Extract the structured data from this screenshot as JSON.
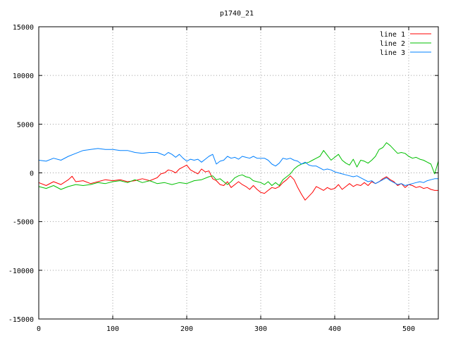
{
  "chart_data": {
    "type": "line",
    "title": "p1740_21",
    "xlabel": "",
    "ylabel": "",
    "xlim": [
      0,
      540
    ],
    "ylim": [
      -15000,
      15000
    ],
    "x_ticks": [
      0,
      100,
      200,
      300,
      400,
      500
    ],
    "y_ticks": [
      -15000,
      -10000,
      -5000,
      0,
      5000,
      10000,
      15000
    ],
    "grid": true,
    "legend_position": "top-right",
    "series": [
      {
        "name": "line 1",
        "color": "#ff0000",
        "points": [
          [
            0,
            -1000
          ],
          [
            10,
            -1300
          ],
          [
            20,
            -900
          ],
          [
            30,
            -1200
          ],
          [
            40,
            -700
          ],
          [
            45,
            -350
          ],
          [
            50,
            -900
          ],
          [
            60,
            -800
          ],
          [
            70,
            -1100
          ],
          [
            80,
            -900
          ],
          [
            90,
            -700
          ],
          [
            100,
            -800
          ],
          [
            110,
            -700
          ],
          [
            120,
            -900
          ],
          [
            130,
            -800
          ],
          [
            140,
            -600
          ],
          [
            150,
            -800
          ],
          [
            160,
            -500
          ],
          [
            165,
            -100
          ],
          [
            170,
            0
          ],
          [
            175,
            300
          ],
          [
            180,
            200
          ],
          [
            185,
            0
          ],
          [
            190,
            400
          ],
          [
            195,
            600
          ],
          [
            200,
            800
          ],
          [
            205,
            300
          ],
          [
            210,
            100
          ],
          [
            215,
            -100
          ],
          [
            220,
            400
          ],
          [
            225,
            100
          ],
          [
            230,
            200
          ],
          [
            235,
            -600
          ],
          [
            240,
            -800
          ],
          [
            245,
            -1200
          ],
          [
            250,
            -1300
          ],
          [
            255,
            -900
          ],
          [
            260,
            -1500
          ],
          [
            265,
            -1200
          ],
          [
            270,
            -900
          ],
          [
            275,
            -1200
          ],
          [
            280,
            -1400
          ],
          [
            285,
            -1700
          ],
          [
            290,
            -1300
          ],
          [
            295,
            -1700
          ],
          [
            300,
            -2000
          ],
          [
            305,
            -2100
          ],
          [
            310,
            -1800
          ],
          [
            315,
            -1500
          ],
          [
            320,
            -1600
          ],
          [
            325,
            -1400
          ],
          [
            330,
            -1000
          ],
          [
            335,
            -700
          ],
          [
            340,
            -300
          ],
          [
            345,
            -700
          ],
          [
            350,
            -1500
          ],
          [
            355,
            -2200
          ],
          [
            360,
            -2800
          ],
          [
            365,
            -2400
          ],
          [
            370,
            -2000
          ],
          [
            375,
            -1400
          ],
          [
            380,
            -1600
          ],
          [
            385,
            -1800
          ],
          [
            390,
            -1500
          ],
          [
            395,
            -1700
          ],
          [
            400,
            -1600
          ],
          [
            405,
            -1200
          ],
          [
            410,
            -1700
          ],
          [
            415,
            -1400
          ],
          [
            420,
            -1100
          ],
          [
            425,
            -1400
          ],
          [
            430,
            -1200
          ],
          [
            435,
            -1300
          ],
          [
            440,
            -1000
          ],
          [
            445,
            -1300
          ],
          [
            450,
            -900
          ],
          [
            455,
            -1100
          ],
          [
            460,
            -900
          ],
          [
            465,
            -600
          ],
          [
            470,
            -400
          ],
          [
            475,
            -700
          ],
          [
            480,
            -900
          ],
          [
            485,
            -1300
          ],
          [
            490,
            -1100
          ],
          [
            495,
            -1500
          ],
          [
            500,
            -1200
          ],
          [
            505,
            -1300
          ],
          [
            510,
            -1500
          ],
          [
            515,
            -1400
          ],
          [
            520,
            -1600
          ],
          [
            525,
            -1500
          ],
          [
            530,
            -1700
          ],
          [
            535,
            -1800
          ],
          [
            540,
            -1800
          ]
        ]
      },
      {
        "name": "line 2",
        "color": "#00c000",
        "points": [
          [
            0,
            -1400
          ],
          [
            10,
            -1600
          ],
          [
            20,
            -1300
          ],
          [
            30,
            -1700
          ],
          [
            40,
            -1400
          ],
          [
            50,
            -1200
          ],
          [
            60,
            -1300
          ],
          [
            70,
            -1200
          ],
          [
            80,
            -1000
          ],
          [
            90,
            -1100
          ],
          [
            100,
            -900
          ],
          [
            110,
            -800
          ],
          [
            120,
            -1000
          ],
          [
            130,
            -700
          ],
          [
            140,
            -1000
          ],
          [
            150,
            -800
          ],
          [
            160,
            -1100
          ],
          [
            170,
            -1000
          ],
          [
            180,
            -1200
          ],
          [
            190,
            -1000
          ],
          [
            200,
            -1100
          ],
          [
            210,
            -800
          ],
          [
            220,
            -700
          ],
          [
            230,
            -400
          ],
          [
            235,
            -300
          ],
          [
            240,
            -700
          ],
          [
            245,
            -600
          ],
          [
            250,
            -900
          ],
          [
            255,
            -1200
          ],
          [
            260,
            -900
          ],
          [
            265,
            -500
          ],
          [
            270,
            -300
          ],
          [
            275,
            -200
          ],
          [
            280,
            -400
          ],
          [
            285,
            -500
          ],
          [
            290,
            -800
          ],
          [
            300,
            -1000
          ],
          [
            305,
            -1200
          ],
          [
            310,
            -900
          ],
          [
            315,
            -1300
          ],
          [
            320,
            -1000
          ],
          [
            325,
            -1300
          ],
          [
            330,
            -700
          ],
          [
            335,
            -400
          ],
          [
            340,
            -100
          ],
          [
            345,
            400
          ],
          [
            350,
            700
          ],
          [
            355,
            900
          ],
          [
            360,
            1000
          ],
          [
            365,
            1100
          ],
          [
            370,
            1300
          ],
          [
            375,
            1500
          ],
          [
            380,
            1700
          ],
          [
            385,
            2300
          ],
          [
            390,
            1800
          ],
          [
            395,
            1300
          ],
          [
            400,
            1600
          ],
          [
            405,
            1900
          ],
          [
            410,
            1300
          ],
          [
            415,
            1000
          ],
          [
            420,
            800
          ],
          [
            425,
            1400
          ],
          [
            430,
            600
          ],
          [
            435,
            1300
          ],
          [
            440,
            1200
          ],
          [
            445,
            1000
          ],
          [
            450,
            1300
          ],
          [
            455,
            1700
          ],
          [
            460,
            2400
          ],
          [
            465,
            2600
          ],
          [
            470,
            3100
          ],
          [
            475,
            2800
          ],
          [
            480,
            2400
          ],
          [
            485,
            2000
          ],
          [
            490,
            2100
          ],
          [
            495,
            2000
          ],
          [
            500,
            1700
          ],
          [
            505,
            1500
          ],
          [
            510,
            1600
          ],
          [
            515,
            1400
          ],
          [
            520,
            1300
          ],
          [
            525,
            1100
          ],
          [
            530,
            900
          ],
          [
            535,
            -100
          ],
          [
            540,
            1200
          ]
        ]
      },
      {
        "name": "line 3",
        "color": "#0080ff",
        "points": [
          [
            0,
            1300
          ],
          [
            10,
            1200
          ],
          [
            20,
            1500
          ],
          [
            30,
            1300
          ],
          [
            40,
            1700
          ],
          [
            50,
            2000
          ],
          [
            60,
            2300
          ],
          [
            70,
            2400
          ],
          [
            80,
            2500
          ],
          [
            90,
            2400
          ],
          [
            100,
            2400
          ],
          [
            110,
            2300
          ],
          [
            120,
            2300
          ],
          [
            130,
            2100
          ],
          [
            140,
            2000
          ],
          [
            150,
            2100
          ],
          [
            160,
            2100
          ],
          [
            170,
            1800
          ],
          [
            175,
            2100
          ],
          [
            180,
            1900
          ],
          [
            185,
            1600
          ],
          [
            190,
            1900
          ],
          [
            195,
            1500
          ],
          [
            200,
            1200
          ],
          [
            205,
            1400
          ],
          [
            210,
            1300
          ],
          [
            215,
            1400
          ],
          [
            220,
            1100
          ],
          [
            225,
            1400
          ],
          [
            230,
            1700
          ],
          [
            235,
            1900
          ],
          [
            240,
            900
          ],
          [
            245,
            1200
          ],
          [
            250,
            1300
          ],
          [
            255,
            1700
          ],
          [
            260,
            1500
          ],
          [
            265,
            1600
          ],
          [
            270,
            1400
          ],
          [
            275,
            1700
          ],
          [
            280,
            1600
          ],
          [
            285,
            1500
          ],
          [
            290,
            1700
          ],
          [
            295,
            1500
          ],
          [
            300,
            1500
          ],
          [
            305,
            1500
          ],
          [
            310,
            1300
          ],
          [
            315,
            900
          ],
          [
            320,
            700
          ],
          [
            325,
            1000
          ],
          [
            330,
            1500
          ],
          [
            335,
            1400
          ],
          [
            340,
            1500
          ],
          [
            345,
            1300
          ],
          [
            350,
            1200
          ],
          [
            355,
            900
          ],
          [
            360,
            1100
          ],
          [
            365,
            800
          ],
          [
            370,
            700
          ],
          [
            375,
            700
          ],
          [
            380,
            500
          ],
          [
            385,
            300
          ],
          [
            390,
            400
          ],
          [
            395,
            300
          ],
          [
            400,
            100
          ],
          [
            405,
            0
          ],
          [
            410,
            -100
          ],
          [
            415,
            -200
          ],
          [
            420,
            -300
          ],
          [
            425,
            -400
          ],
          [
            430,
            -300
          ],
          [
            435,
            -500
          ],
          [
            440,
            -700
          ],
          [
            445,
            -900
          ],
          [
            450,
            -800
          ],
          [
            455,
            -1100
          ],
          [
            460,
            -900
          ],
          [
            465,
            -700
          ],
          [
            470,
            -500
          ],
          [
            475,
            -800
          ],
          [
            480,
            -1000
          ],
          [
            485,
            -1200
          ],
          [
            490,
            -1100
          ],
          [
            495,
            -1300
          ],
          [
            500,
            -1200
          ],
          [
            505,
            -1100
          ],
          [
            510,
            -1000
          ],
          [
            515,
            -900
          ],
          [
            520,
            -1000
          ],
          [
            525,
            -800
          ],
          [
            530,
            -700
          ],
          [
            535,
            -600
          ],
          [
            540,
            -600
          ]
        ]
      }
    ]
  }
}
